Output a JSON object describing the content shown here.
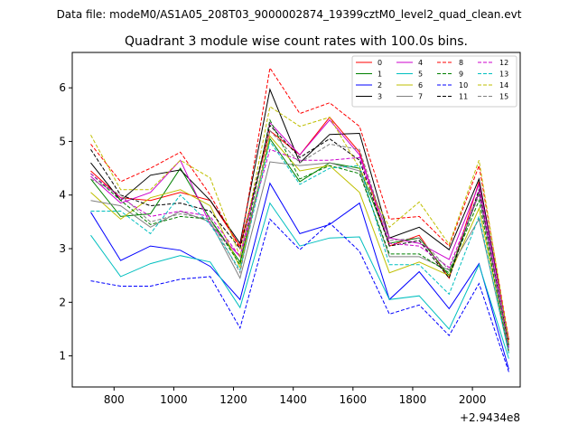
{
  "header": {
    "data_file": "Data file: modeM0/AS1A05_208T03_9000002874_19399cztM0_level2_quad_clean.evt"
  },
  "chart_data": {
    "type": "line",
    "title": "Quadrant 3 module wise count rates with 100.0s bins.",
    "xlabel": "",
    "ylabel": "",
    "x_offset_label": "+2.9434e8",
    "xlim": [
      660,
      2160
    ],
    "ylim": [
      0.42,
      6.66
    ],
    "x_ticks": [
      800,
      1000,
      1200,
      1400,
      1600,
      1800,
      2000
    ],
    "y_ticks": [
      1,
      2,
      3,
      4,
      5,
      6
    ],
    "x": [
      722,
      822,
      922,
      1022,
      1122,
      1222,
      1322,
      1422,
      1522,
      1622,
      1722,
      1822,
      1922,
      2022,
      2122
    ],
    "legend_position": "top-right",
    "series": [
      {
        "name": "0",
        "color": "#ff0000",
        "dash": "solid",
        "values": [
          4.45,
          3.95,
          3.9,
          4.05,
          3.9,
          3.05,
          5.2,
          4.75,
          5.45,
          4.8,
          3.05,
          3.25,
          2.45,
          4.25,
          1.3
        ]
      },
      {
        "name": "1",
        "color": "#008000",
        "dash": "solid",
        "values": [
          4.3,
          3.6,
          3.65,
          4.5,
          3.55,
          2.75,
          5.05,
          4.25,
          4.6,
          4.5,
          3.1,
          3.2,
          2.5,
          4.05,
          1.2
        ]
      },
      {
        "name": "2",
        "color": "#0000ff",
        "dash": "solid",
        "values": [
          3.68,
          2.78,
          3.05,
          2.97,
          2.67,
          2.05,
          4.22,
          3.28,
          3.45,
          3.85,
          2.05,
          2.57,
          1.88,
          2.72,
          0.75
        ]
      },
      {
        "name": "3",
        "color": "#000000",
        "dash": "solid",
        "values": [
          4.6,
          3.9,
          4.37,
          4.47,
          3.9,
          3.1,
          5.97,
          4.6,
          5.13,
          5.15,
          3.2,
          3.4,
          2.98,
          4.3,
          1.3
        ]
      },
      {
        "name": "4",
        "color": "#cc00cc",
        "dash": "solid",
        "values": [
          4.35,
          3.85,
          4.05,
          4.65,
          3.45,
          2.85,
          5.35,
          4.75,
          5.4,
          4.75,
          3.2,
          3.1,
          2.8,
          4.2,
          1.3
        ]
      },
      {
        "name": "5",
        "color": "#00bfbf",
        "dash": "solid",
        "values": [
          3.25,
          2.48,
          2.72,
          2.87,
          2.75,
          1.9,
          3.85,
          3.05,
          3.2,
          3.22,
          2.05,
          2.12,
          1.5,
          2.7,
          0.95
        ]
      },
      {
        "name": "6",
        "color": "#bfbf00",
        "dash": "solid",
        "values": [
          4.05,
          3.55,
          3.95,
          4.1,
          3.8,
          2.65,
          5.1,
          4.45,
          4.55,
          4.05,
          2.55,
          2.75,
          2.5,
          3.75,
          1.1
        ]
      },
      {
        "name": "7",
        "color": "#808080",
        "dash": "solid",
        "values": [
          3.9,
          3.8,
          3.4,
          3.7,
          3.5,
          2.45,
          4.62,
          4.55,
          4.6,
          4.45,
          2.85,
          2.85,
          2.6,
          3.55,
          1.05
        ]
      },
      {
        "name": "8",
        "color": "#ff0000",
        "dash": "dashed",
        "values": [
          4.95,
          4.25,
          4.5,
          4.8,
          4.0,
          3.0,
          6.37,
          5.52,
          5.72,
          5.28,
          3.55,
          3.6,
          3.05,
          4.55,
          1.3
        ]
      },
      {
        "name": "9",
        "color": "#008000",
        "dash": "dashed",
        "values": [
          4.4,
          3.9,
          3.45,
          3.6,
          3.55,
          2.7,
          5.4,
          4.3,
          4.55,
          4.4,
          2.9,
          2.9,
          2.55,
          3.9,
          1.05
        ]
      },
      {
        "name": "10",
        "color": "#0000ff",
        "dash": "dashed",
        "values": [
          2.4,
          2.3,
          2.3,
          2.43,
          2.48,
          1.52,
          3.55,
          2.98,
          3.48,
          2.95,
          1.78,
          1.95,
          1.38,
          2.35,
          0.7
        ]
      },
      {
        "name": "11",
        "color": "#000000",
        "dash": "dashed",
        "values": [
          4.85,
          4.0,
          3.8,
          3.85,
          3.7,
          3.0,
          5.3,
          4.7,
          5.05,
          4.65,
          3.05,
          3.15,
          2.45,
          4.1,
          1.15
        ]
      },
      {
        "name": "12",
        "color": "#cc00cc",
        "dash": "dashed",
        "values": [
          4.4,
          3.95,
          3.6,
          3.7,
          3.6,
          2.85,
          4.85,
          4.65,
          4.65,
          4.7,
          3.1,
          3.05,
          2.65,
          4.05,
          1.15
        ]
      },
      {
        "name": "13",
        "color": "#00bfbf",
        "dash": "dashed",
        "values": [
          3.7,
          3.7,
          3.28,
          4.0,
          3.45,
          2.6,
          5.0,
          4.2,
          4.5,
          4.55,
          2.7,
          2.7,
          2.15,
          3.6,
          1.05
        ]
      },
      {
        "name": "14",
        "color": "#bfbf00",
        "dash": "dashed",
        "values": [
          5.12,
          4.1,
          4.1,
          4.65,
          4.32,
          2.85,
          5.65,
          5.28,
          5.45,
          4.5,
          3.4,
          3.87,
          3.08,
          4.65,
          1.25
        ]
      },
      {
        "name": "15",
        "color": "#808080",
        "dash": "dashed",
        "values": [
          4.3,
          4.0,
          3.5,
          3.65,
          3.55,
          2.55,
          5.2,
          4.6,
          4.95,
          4.85,
          3.15,
          3.2,
          2.6,
          4.0,
          1.1
        ]
      }
    ]
  }
}
